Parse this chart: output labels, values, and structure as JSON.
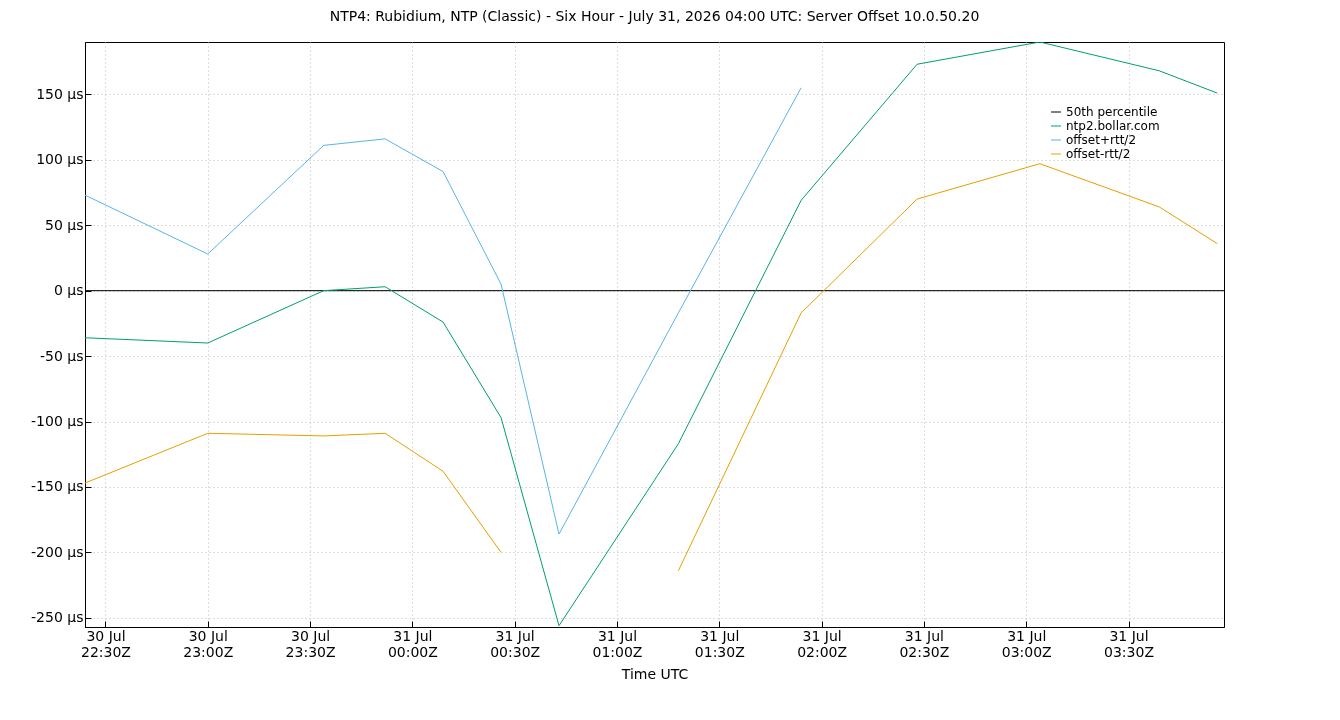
{
  "chart_data": {
    "type": "line",
    "title": "NTP4: Rubidium, NTP (Classic) - Six Hour - July 31, 2026 04:00 UTC: Server Offset 10.0.50.20",
    "xlabel": "Time UTC",
    "x": [
      "2026-07-30T22:24",
      "2026-07-30T23:00",
      "2026-07-30T23:34",
      "2026-07-30T23:52",
      "2026-07-31T00:09",
      "2026-07-31T00:26",
      "2026-07-31T00:43",
      "2026-07-31T01:18",
      "2026-07-31T01:54",
      "2026-07-31T02:28",
      "2026-07-31T03:04",
      "2026-07-31T03:39",
      "2026-07-31T03:56"
    ],
    "series": [
      {
        "name": "50th percentile",
        "color": "#000000",
        "x": [
          "2026-07-30T22:24",
          "2026-07-31T03:58"
        ],
        "values": [
          0,
          0
        ]
      },
      {
        "name": "ntp2.bollar.com",
        "color": "#009e73",
        "values": [
          -36,
          -40,
          0,
          3,
          -24,
          -97,
          -256,
          -117,
          69,
          173,
          190,
          168,
          151
        ]
      },
      {
        "name": "offset+rtt/2",
        "color": "#56b4e9",
        "values": [
          73,
          28,
          111,
          116,
          91,
          5,
          -186,
          -17,
          155,
          null,
          null,
          null,
          null
        ]
      },
      {
        "name": "offset-rtt/2",
        "color": "#e69f00",
        "values": [
          -147,
          -109,
          -111,
          -109,
          -138,
          -200,
          null,
          -214,
          -17,
          70,
          97,
          64,
          36
        ]
      }
    ],
    "xlim": [
      "2026-07-30T22:24",
      "2026-07-31T03:58"
    ],
    "xticks": [
      {
        "value": "2026-07-30T22:30",
        "label": "30 Jul\n22:30Z"
      },
      {
        "value": "2026-07-30T23:00",
        "label": "30 Jul\n23:00Z"
      },
      {
        "value": "2026-07-30T23:30",
        "label": "30 Jul\n23:30Z"
      },
      {
        "value": "2026-07-31T00:00",
        "label": "31 Jul\n00:00Z"
      },
      {
        "value": "2026-07-31T00:30",
        "label": "31 Jul\n00:30Z"
      },
      {
        "value": "2026-07-31T01:00",
        "label": "31 Jul\n01:00Z"
      },
      {
        "value": "2026-07-31T01:30",
        "label": "31 Jul\n01:30Z"
      },
      {
        "value": "2026-07-31T02:00",
        "label": "31 Jul\n02:00Z"
      },
      {
        "value": "2026-07-31T02:30",
        "label": "31 Jul\n02:30Z"
      },
      {
        "value": "2026-07-31T03:00",
        "label": "31 Jul\n03:00Z"
      },
      {
        "value": "2026-07-31T03:30",
        "label": "31 Jul\n03:30Z"
      }
    ],
    "ylim": [
      -257,
      190
    ],
    "yticks": [
      {
        "value": -250,
        "label": "-250 µs"
      },
      {
        "value": -200,
        "label": "-200 µs"
      },
      {
        "value": -150,
        "label": "-150 µs"
      },
      {
        "value": -100,
        "label": "-100 µs"
      },
      {
        "value": -50,
        "label": "-50 µs"
      },
      {
        "value": 0,
        "label": "0 µs"
      },
      {
        "value": 50,
        "label": "50 µs"
      },
      {
        "value": 100,
        "label": "100 µs"
      },
      {
        "value": 150,
        "label": "150 µs"
      }
    ],
    "grid": true,
    "legend": "top right",
    "marker": "none",
    "line_style": "solid"
  }
}
